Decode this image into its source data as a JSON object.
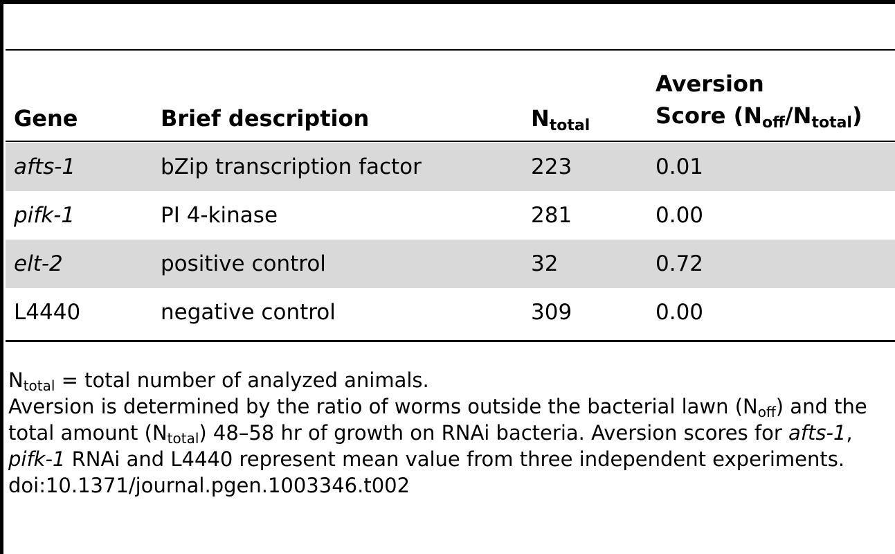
{
  "table": {
    "headers": {
      "gene": "Gene",
      "description": "Brief description",
      "ntotal_base": "N",
      "ntotal_sub": "total",
      "aversion_line1": "Aversion",
      "aversion_line2_pre": "Score (N",
      "aversion_sub_off": "off",
      "aversion_mid": "/N",
      "aversion_sub_total": "total",
      "aversion_close": ")"
    },
    "rows": [
      {
        "gene": "afts-1",
        "gene_italic": true,
        "description": "bZip transcription factor",
        "ntotal": "223",
        "score": "0.01",
        "shaded": true
      },
      {
        "gene": "pifk-1",
        "gene_italic": true,
        "description": "PI 4-kinase",
        "ntotal": "281",
        "score": "0.00",
        "shaded": false
      },
      {
        "gene": "elt-2",
        "gene_italic": true,
        "description": "positive control",
        "ntotal": "32",
        "score": "0.72",
        "shaded": true
      },
      {
        "gene": "L4440",
        "gene_italic": false,
        "description": "negative control",
        "ntotal": "309",
        "score": "0.00",
        "shaded": false
      }
    ]
  },
  "footnotes": {
    "line1": {
      "n": "N",
      "sub": "total",
      "text": " = total number of analyzed animals."
    },
    "para": {
      "t1": "Aversion is determined by the ratio of worms outside the bacterial lawn (N",
      "s1": "off",
      "t2": ") and the total amount (N",
      "s2": "total",
      "t3": ") 48–58 hr of growth on RNAi bacteria. Aversion scores for ",
      "i1": "afts-1",
      "t4": ", ",
      "i2": "pifk-1",
      "t5": " RNAi and L4440 represent mean value from three independent experiments."
    },
    "doi": "doi:10.1371/journal.pgen.1003346.t002"
  }
}
